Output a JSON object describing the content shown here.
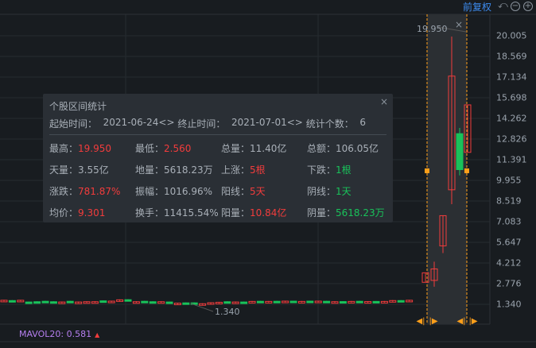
{
  "toolbar": {
    "adjust_label": "前复权",
    "undo_icon": "undo-icon",
    "zoom_out_icon": "minus-circle-icon",
    "zoom_in_icon": "plus-circle-icon"
  },
  "axis": {
    "ticks": [
      "20.005",
      "18.569",
      "17.134",
      "15.698",
      "14.262",
      "12.826",
      "11.391",
      "9.955",
      "8.519",
      "7.083",
      "5.647",
      "4.212",
      "2.776",
      "1.340"
    ]
  },
  "annotations": {
    "high": "19.950",
    "low": "1.340"
  },
  "colors": {
    "up": "#f23c3c",
    "down": "#19c25a",
    "selection": "#ff9f1a",
    "mavol": "#b67ff0"
  },
  "indicator": {
    "label": "MAVOL20: 0.581"
  },
  "stats": {
    "title": "个股区间统计",
    "start_label": "起始时间：",
    "start_value": "2021-06-24",
    "end_label": "终止时间：",
    "end_value": "2021-07-01",
    "count_label": "统计个数：",
    "count_value": "6",
    "rows": [
      [
        {
          "k": "最高：",
          "v": "19.950",
          "c": "r"
        },
        {
          "k": "最低：",
          "v": "2.560",
          "c": "r"
        },
        {
          "k": "总量：",
          "v": "11.40亿",
          "c": ""
        },
        {
          "k": "总额：",
          "v": "106.05亿",
          "c": ""
        }
      ],
      [
        {
          "k": "天量：",
          "v": "3.55亿",
          "c": ""
        },
        {
          "k": "地量：",
          "v": "5618.23万",
          "c": ""
        },
        {
          "k": "上涨：",
          "v": "5根",
          "c": "r"
        },
        {
          "k": "下跌：",
          "v": "1根",
          "c": "g"
        }
      ],
      [
        {
          "k": "涨跌：",
          "v": "781.87%",
          "c": "r"
        },
        {
          "k": "振幅：",
          "v": "1016.96%",
          "c": ""
        },
        {
          "k": "阳线：",
          "v": "5天",
          "c": "r"
        },
        {
          "k": "阴线：",
          "v": "1天",
          "c": "g"
        }
      ],
      [
        {
          "k": "均价：",
          "v": "9.301",
          "c": "r"
        },
        {
          "k": "换手：",
          "v": "11415.54%",
          "c": ""
        },
        {
          "k": "阳量：",
          "v": "10.84亿",
          "c": "r"
        },
        {
          "k": "阴量：",
          "v": "5618.23万",
          "c": "g"
        }
      ]
    ]
  },
  "candles_history": [
    [
      1.58,
      1.62
    ],
    [
      1.6,
      1.55
    ],
    [
      1.58,
      1.62
    ],
    [
      1.5,
      1.45
    ],
    [
      1.52,
      1.46
    ],
    [
      1.55,
      1.5
    ],
    [
      1.52,
      1.51
    ],
    [
      1.46,
      1.5
    ],
    [
      1.55,
      1.5
    ],
    [
      1.46,
      1.5
    ],
    [
      1.48,
      1.52
    ],
    [
      1.48,
      1.52
    ],
    [
      1.58,
      1.53
    ],
    [
      1.52,
      1.56
    ],
    [
      1.6,
      1.65
    ],
    [
      1.66,
      1.58
    ],
    [
      1.48,
      1.52
    ],
    [
      1.55,
      1.5
    ],
    [
      1.52,
      1.46
    ],
    [
      1.48,
      1.52
    ],
    [
      1.5,
      1.45
    ],
    [
      1.38,
      1.42
    ],
    [
      1.44,
      1.39
    ],
    [
      1.44,
      1.39
    ],
    [
      1.34,
      1.38
    ],
    [
      1.4,
      1.45
    ],
    [
      1.44,
      1.48
    ],
    [
      1.52,
      1.47
    ],
    [
      1.46,
      1.5
    ],
    [
      1.5,
      1.45
    ],
    [
      1.5,
      1.54
    ],
    [
      1.55,
      1.5
    ],
    [
      1.5,
      1.54
    ],
    [
      1.55,
      1.5
    ],
    [
      1.52,
      1.56
    ],
    [
      1.56,
      1.52
    ],
    [
      1.5,
      1.54
    ],
    [
      1.56,
      1.51
    ],
    [
      1.52,
      1.56
    ],
    [
      1.55,
      1.5
    ],
    [
      1.48,
      1.52
    ],
    [
      1.53,
      1.49
    ],
    [
      1.5,
      1.54
    ],
    [
      1.55,
      1.51
    ],
    [
      1.49,
      1.53
    ],
    [
      1.54,
      1.49
    ],
    [
      1.5,
      1.54
    ],
    [
      1.55,
      1.6
    ],
    [
      1.6,
      1.55
    ],
    [
      1.58,
      1.62
    ]
  ],
  "candles_selected": [
    {
      "o": 2.87,
      "h": 3.53,
      "l": 2.87,
      "c": 3.53
    },
    {
      "o": 3.0,
      "h": 4.3,
      "l": 2.56,
      "c": 3.8
    },
    {
      "o": 5.4,
      "h": 7.5,
      "l": 4.9,
      "c": 7.5
    },
    {
      "o": 9.3,
      "h": 19.95,
      "l": 8.3,
      "c": 17.2
    },
    {
      "o": 13.2,
      "h": 13.6,
      "l": 10.3,
      "c": 10.7
    },
    {
      "o": 11.9,
      "h": 15.2,
      "l": 11.9,
      "c": 15.2
    }
  ]
}
